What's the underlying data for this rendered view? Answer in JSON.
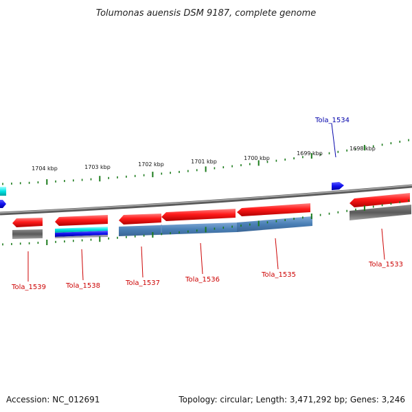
{
  "title": "Tolumonas auensis DSM 9187, complete genome",
  "footer": {
    "accession": "Accession: NC_012691",
    "topology": "Topology: circular; Length: 3,471,292 bp; Genes: 3,246"
  },
  "colors": {
    "forward_gene": "#ff1a1a",
    "reverse_gene": "#4a7fb5",
    "highlight_gene": "#1010ee",
    "backbone": "#8a8a8a",
    "tick": "#1a7a1a",
    "label_red": "#cc0000",
    "label_blue": "#0000aa"
  },
  "scale_labels": [
    {
      "name": "1704 kbp",
      "kbp": 1704
    },
    {
      "name": "1703 kbp",
      "kbp": 1703
    },
    {
      "name": "1702 kbp",
      "kbp": 1702
    },
    {
      "name": "1701 kbp",
      "kbp": 1701
    },
    {
      "name": "1700 kbp",
      "kbp": 1700
    },
    {
      "name": "1699 kbp",
      "kbp": 1699
    },
    {
      "name": "1698 kbp",
      "kbp": 1698
    }
  ],
  "gene_labels": [
    {
      "name": "Tola_1539",
      "color": "red"
    },
    {
      "name": "Tola_1538",
      "color": "red"
    },
    {
      "name": "Tola_1537",
      "color": "red"
    },
    {
      "name": "Tola_1536",
      "color": "red"
    },
    {
      "name": "Tola_1535",
      "color": "red"
    },
    {
      "name": "Tola_1534",
      "color": "blue"
    },
    {
      "name": "Tola_1533",
      "color": "red"
    }
  ]
}
